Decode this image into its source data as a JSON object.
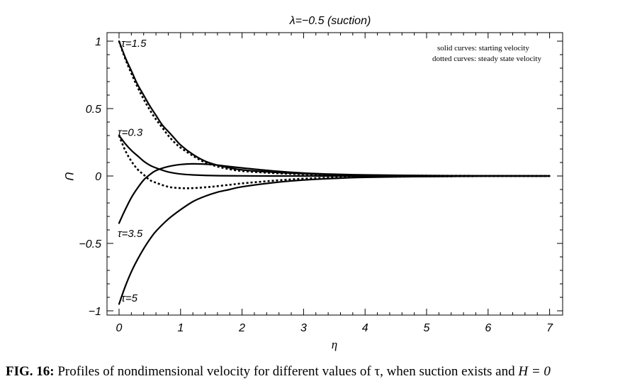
{
  "chart_data": {
    "type": "line",
    "title": "λ=−0.5 (suction)",
    "xlabel": "η",
    "ylabel": "U",
    "xlim": [
      0,
      7
    ],
    "ylim": [
      -1,
      1
    ],
    "xticks": [
      "0",
      "1",
      "2",
      "3",
      "4",
      "5",
      "6",
      "7"
    ],
    "yticks": [
      "−1",
      "−0.5",
      "0",
      "0.5",
      "1"
    ],
    "legend_lines": [
      "solid curves: starting velocity",
      "dotted curves: steady state velocity"
    ],
    "legend_position": "top-right",
    "grid": false,
    "series": [
      {
        "name": "τ=1.5",
        "style": "solid",
        "x": [
          0,
          0.1,
          0.2,
          0.3,
          0.4,
          0.5,
          0.6,
          0.7,
          0.8,
          0.9,
          1.0,
          1.2,
          1.4,
          1.6,
          1.8,
          2.0,
          2.5,
          3,
          3.5,
          4,
          5,
          6,
          7
        ],
        "y": [
          1.0,
          0.88,
          0.78,
          0.68,
          0.6,
          0.52,
          0.45,
          0.38,
          0.33,
          0.28,
          0.23,
          0.16,
          0.11,
          0.08,
          0.06,
          0.045,
          0.028,
          0.017,
          0.01,
          0.006,
          0.002,
          0.001,
          0.0
        ]
      },
      {
        "name": "τ=1.5 steady",
        "style": "dotted",
        "x": [
          0,
          0.1,
          0.2,
          0.3,
          0.4,
          0.5,
          0.6,
          0.7,
          0.8,
          0.9,
          1.0,
          1.2,
          1.4,
          1.6,
          1.8,
          2.0,
          2.5,
          3,
          3.5,
          4,
          5,
          6,
          7
        ],
        "y": [
          1.0,
          0.87,
          0.76,
          0.66,
          0.57,
          0.49,
          0.42,
          0.36,
          0.3,
          0.25,
          0.21,
          0.15,
          0.1,
          0.07,
          0.05,
          0.037,
          0.022,
          0.013,
          0.008,
          0.005,
          0.002,
          0.001,
          0.0
        ]
      },
      {
        "name": "τ=0.3",
        "style": "solid",
        "x": [
          0,
          0.1,
          0.2,
          0.3,
          0.4,
          0.5,
          0.6,
          0.8,
          1.0,
          1.2,
          1.5,
          2.0,
          2.5,
          3,
          4,
          5,
          6,
          7
        ],
        "y": [
          0.3,
          0.24,
          0.19,
          0.15,
          0.11,
          0.08,
          0.06,
          0.03,
          0.015,
          0.008,
          0.003,
          0.001,
          0.0,
          0.0,
          0.0,
          0.0,
          0.0,
          0.0
        ]
      },
      {
        "name": "τ=0.3 steady",
        "style": "dotted",
        "x": [
          0,
          0.1,
          0.2,
          0.3,
          0.4,
          0.5,
          0.6,
          0.8,
          1.0,
          1.2,
          1.5,
          1.8,
          2.0,
          2.5,
          3,
          3.5,
          4,
          5,
          6,
          7
        ],
        "y": [
          0.3,
          0.19,
          0.11,
          0.05,
          0.01,
          -0.03,
          -0.05,
          -0.08,
          -0.09,
          -0.09,
          -0.08,
          -0.065,
          -0.055,
          -0.035,
          -0.02,
          -0.012,
          -0.007,
          -0.003,
          -0.001,
          0.0
        ]
      },
      {
        "name": "τ=3.5",
        "style": "solid",
        "x": [
          0,
          0.1,
          0.2,
          0.3,
          0.4,
          0.5,
          0.6,
          0.8,
          1.0,
          1.2,
          1.5,
          1.8,
          2.0,
          2.5,
          3,
          3.5,
          4,
          5,
          6,
          7
        ],
        "y": [
          -0.35,
          -0.25,
          -0.16,
          -0.09,
          -0.03,
          0.01,
          0.04,
          0.07,
          0.085,
          0.09,
          0.085,
          0.07,
          0.06,
          0.038,
          0.022,
          0.013,
          0.008,
          0.003,
          0.001,
          0.0
        ]
      },
      {
        "name": "τ=5",
        "style": "solid",
        "x": [
          0,
          0.1,
          0.2,
          0.3,
          0.4,
          0.5,
          0.6,
          0.8,
          1.0,
          1.2,
          1.4,
          1.6,
          1.8,
          2.0,
          2.5,
          3,
          3.5,
          4,
          5,
          6,
          7
        ],
        "y": [
          -0.95,
          -0.82,
          -0.71,
          -0.62,
          -0.54,
          -0.47,
          -0.41,
          -0.32,
          -0.25,
          -0.19,
          -0.15,
          -0.12,
          -0.1,
          -0.08,
          -0.05,
          -0.03,
          -0.018,
          -0.01,
          -0.004,
          -0.001,
          0.0
        ]
      }
    ],
    "annotations": [
      {
        "text": "τ=1.5",
        "x": 0.06,
        "y": 0.99
      },
      {
        "text": "τ=0.3",
        "x": 0.0,
        "y": 0.33
      },
      {
        "text": "τ=3.5",
        "x": 0.0,
        "y": -0.42
      },
      {
        "text": "τ=5",
        "x": 0.06,
        "y": -0.9
      }
    ]
  },
  "caption": {
    "label": "FIG. 16:",
    "text": " Profiles of nondimensional velocity for different values of τ, when suction exists and ",
    "math": "H = 0"
  }
}
